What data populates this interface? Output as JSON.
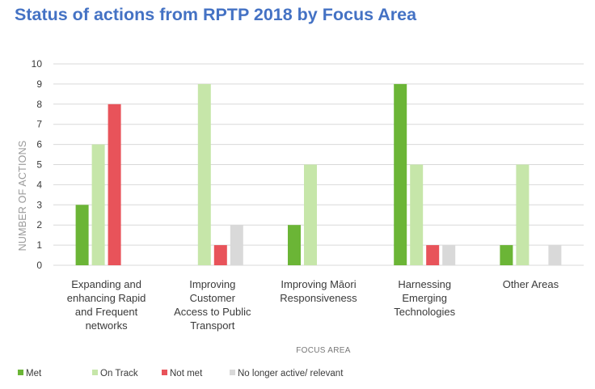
{
  "chart_data": {
    "type": "bar",
    "title": "Status of actions from RPTP 2018 by Focus Area",
    "xlabel": "FOCUS AREA",
    "ylabel": "NUMBER OF ACTIONS",
    "ylim": [
      0,
      10
    ],
    "yticks": [
      0,
      1,
      2,
      3,
      4,
      5,
      6,
      7,
      8,
      9,
      10
    ],
    "grid": true,
    "legend_position": "bottom-left",
    "categories": [
      [
        "Expanding and",
        "enhancing Rapid",
        "and Frequent",
        "networks"
      ],
      [
        "Improving",
        "Customer",
        "Access to Public",
        "Transport"
      ],
      [
        "Improving Māori",
        "Responsiveness"
      ],
      [
        "Harnessing",
        "Emerging",
        "Technologies"
      ],
      [
        "Other Areas"
      ]
    ],
    "series": [
      {
        "name": "Met",
        "color": "#6BB536",
        "values": [
          3,
          0,
          2,
          9,
          1
        ]
      },
      {
        "name": "On Track",
        "color": "#C6E6A9",
        "values": [
          6,
          9,
          5,
          5,
          5
        ]
      },
      {
        "name": "Not met",
        "color": "#E8535A",
        "values": [
          8,
          1,
          0,
          1,
          0
        ]
      },
      {
        "name": "No longer active/ relevant",
        "color": "#D9D9D9",
        "values": [
          0,
          2,
          0,
          1,
          1
        ]
      }
    ]
  }
}
